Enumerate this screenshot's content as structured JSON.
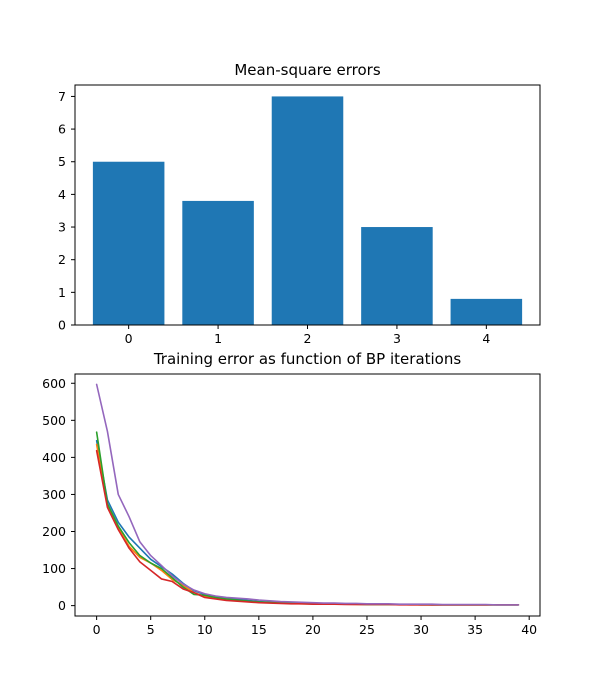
{
  "chart_data": [
    {
      "type": "bar",
      "title": "Mean-square errors",
      "xlabel": "",
      "ylabel": "",
      "categories": [
        "0",
        "1",
        "2",
        "3",
        "4"
      ],
      "values": [
        5.0,
        3.8,
        7.0,
        3.0,
        0.8
      ],
      "ylim": [
        0,
        7.35
      ],
      "yticks": [
        0,
        1,
        2,
        3,
        4,
        5,
        6,
        7
      ],
      "bar_color": "#1f77b4",
      "grid": false
    },
    {
      "type": "line",
      "title": "Training error as function of BP iterations",
      "xlabel": "",
      "ylabel": "",
      "xlim": [
        -2,
        41
      ],
      "ylim": [
        -28,
        625
      ],
      "xticks": [
        0,
        5,
        10,
        15,
        20,
        25,
        30,
        35,
        40
      ],
      "yticks": [
        0,
        100,
        200,
        300,
        400,
        500,
        600
      ],
      "x": [
        0,
        1,
        2,
        3,
        4,
        5,
        6,
        7,
        8,
        9,
        10,
        11,
        12,
        13,
        14,
        15,
        16,
        17,
        18,
        19,
        20,
        21,
        22,
        23,
        24,
        25,
        26,
        27,
        28,
        29,
        30,
        31,
        32,
        33,
        34,
        35,
        36,
        37,
        38,
        39
      ],
      "grid": false,
      "series": [
        {
          "color": "#1f77b4",
          "values": [
            445,
            285,
            225,
            185,
            155,
            125,
            105,
            85,
            60,
            40,
            30,
            24,
            20,
            17,
            14,
            11,
            9,
            8,
            7,
            6,
            5,
            5,
            4,
            4,
            4,
            3,
            3,
            3,
            3,
            3,
            3,
            2,
            2,
            2,
            2,
            2,
            2,
            2,
            2,
            2
          ]
        },
        {
          "color": "#ff7f0e",
          "values": [
            435,
            270,
            210,
            160,
            130,
            115,
            95,
            70,
            55,
            35,
            25,
            20,
            16,
            13,
            11,
            9,
            8,
            7,
            6,
            5,
            5,
            4,
            4,
            4,
            3,
            3,
            3,
            3,
            3,
            2,
            2,
            2,
            2,
            2,
            2,
            2,
            2,
            2,
            2,
            2
          ]
        },
        {
          "color": "#2ca02c",
          "values": [
            468,
            275,
            215,
            170,
            135,
            115,
            100,
            75,
            50,
            30,
            28,
            22,
            18,
            15,
            12,
            10,
            9,
            8,
            7,
            6,
            5,
            5,
            4,
            4,
            4,
            3,
            3,
            3,
            3,
            3,
            2,
            2,
            2,
            2,
            2,
            2,
            2,
            2,
            2,
            2
          ]
        },
        {
          "color": "#d62728",
          "values": [
            418,
            265,
            205,
            155,
            118,
            95,
            72,
            65,
            45,
            35,
            22,
            18,
            14,
            12,
            10,
            8,
            7,
            6,
            5,
            5,
            4,
            4,
            4,
            3,
            3,
            3,
            3,
            3,
            2,
            2,
            2,
            2,
            2,
            2,
            2,
            2,
            2,
            2,
            2,
            2
          ]
        },
        {
          "color": "#9467bd",
          "values": [
            597,
            470,
            300,
            240,
            172,
            135,
            108,
            80,
            58,
            42,
            32,
            26,
            22,
            20,
            18,
            15,
            13,
            11,
            10,
            9,
            8,
            7,
            7,
            6,
            6,
            5,
            5,
            5,
            4,
            4,
            4,
            4,
            3,
            3,
            3,
            3,
            3,
            2,
            2,
            2
          ]
        }
      ]
    }
  ]
}
